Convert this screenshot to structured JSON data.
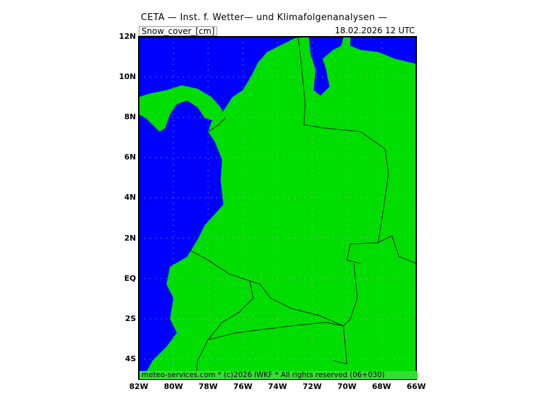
{
  "header": {
    "title": "CETA — Inst. f. Wetter— und Klimafolgenanalysen —",
    "parameter": "Snow_cover_[cm]",
    "datetime": "18.02.2026 12 UTC"
  },
  "map": {
    "extent": {
      "lon": [
        -82,
        -66
      ],
      "lat": [
        -5,
        12
      ]
    },
    "colors": {
      "ocean": "#0000ff",
      "land": "#00dd00",
      "footer_band": "#33dd33",
      "border": "#000000"
    },
    "lat_labels": [
      "12N",
      "10N",
      "8N",
      "6N",
      "4N",
      "2N",
      "EQ",
      "2S",
      "4S"
    ],
    "lon_labels": [
      "82W",
      "80W",
      "78W",
      "76W",
      "74W",
      "72W",
      "70W",
      "68W",
      "66W"
    ],
    "grid": "dotted, every 2 degrees"
  },
  "footer": {
    "credit": "meteo-services.com * (c)2026 IWKF * All rights reserved (06+030)"
  }
}
